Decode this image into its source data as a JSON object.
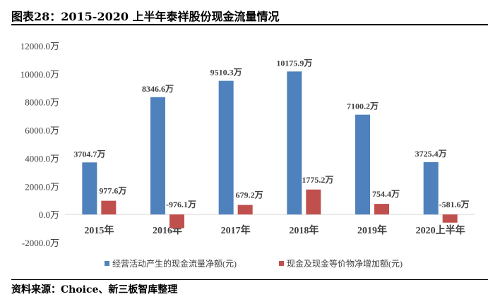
{
  "title": "图表28：2015-2020 上半年泰祥股份现金流量情况",
  "source": "资料来源：Choice、新三板智库整理",
  "chart_data": {
    "type": "bar",
    "categories": [
      "2015年",
      "2016年",
      "2017年",
      "2018年",
      "2019年",
      "2020上半年"
    ],
    "ylim": [
      -2000,
      12000
    ],
    "yticks": [
      -2000,
      0,
      2000,
      4000,
      6000,
      8000,
      10000,
      12000
    ],
    "ytick_labels": [
      "-2000.0万",
      "0.0万",
      "2000.0万",
      "4000.0万",
      "6000.0万",
      "8000.0万",
      "10000.0万",
      "12000.0万"
    ],
    "grid": false,
    "legend_position": "bottom",
    "series": [
      {
        "name": "经营活动产生的现金流量净额(元)",
        "color": "#4F81BD",
        "values": [
          3704.7,
          8346.6,
          9510.3,
          10175.9,
          7100.2,
          3725.4
        ],
        "labels": [
          "3704.7万",
          "8346.6万",
          "9510.3万",
          "10175.9万",
          "7100.2万",
          "3725.4万"
        ]
      },
      {
        "name": "现金及现金等价物净增加额(元)",
        "color": "#C0504D",
        "values": [
          977.6,
          -976.1,
          679.2,
          1775.2,
          754.4,
          -581.6
        ],
        "labels": [
          "977.6万",
          "-976.1万",
          "679.2万",
          "1775.2万",
          "754.4万",
          "-581.6万"
        ]
      }
    ]
  }
}
